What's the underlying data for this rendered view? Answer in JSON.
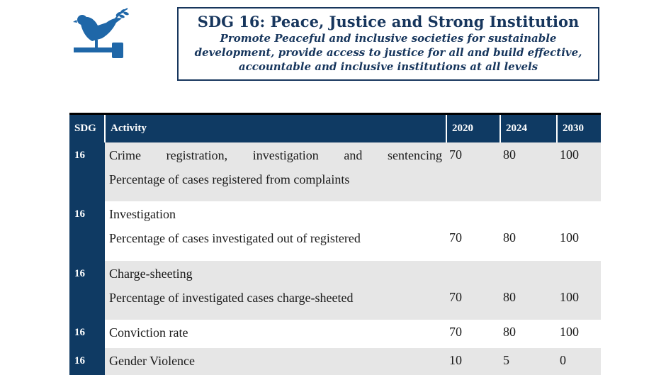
{
  "header": {
    "title": "SDG 16: Peace, Justice and Strong Institution",
    "subtitle": "Promote Peaceful and inclusive societies for sustainable development, provide access to justice for all and build effective, accountable and inclusive institutions at all levels",
    "logo_icon": "dove-gavel-icon",
    "accent_color": "#0f3a63"
  },
  "table": {
    "columns": [
      "SDG",
      "Activity",
      "2020",
      "2024",
      "2030"
    ],
    "rows": [
      {
        "sdg": "16",
        "activity": "Crime registration, investigation and sentencing",
        "detail": "Percentage of cases registered from complaints",
        "y2020": "70",
        "y2024": "80",
        "y2030": "100"
      },
      {
        "sdg": "16",
        "activity": "Investigation",
        "detail": "Percentage of cases investigated out of registered",
        "y2020": "70",
        "y2024": "80",
        "y2030": "100"
      },
      {
        "sdg": "16",
        "activity": "Charge-sheeting",
        "detail": "Percentage of investigated cases charge-sheeted",
        "y2020": "70",
        "y2024": "80",
        "y2030": "100"
      },
      {
        "sdg": "16",
        "activity": "Conviction rate",
        "y2020": "70",
        "y2024": "80",
        "y2030": "100"
      },
      {
        "sdg": "16",
        "activity": "Gender Violence",
        "y2020": "10",
        "y2024": "5",
        "y2030": "0"
      }
    ]
  }
}
